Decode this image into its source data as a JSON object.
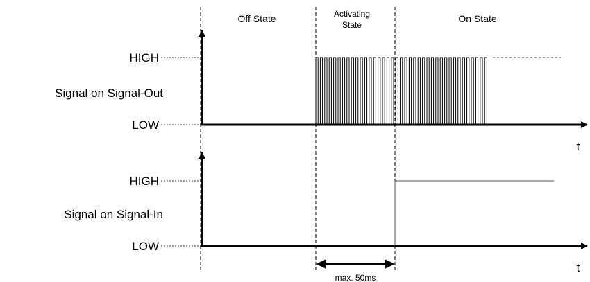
{
  "states": {
    "off": "Off State",
    "activating_line1": "Activating",
    "activating_line2": "State",
    "on": "On State"
  },
  "signal_out": {
    "label": "Signal on Signal-Out",
    "high": "HIGH",
    "low": "LOW",
    "time_axis": "t"
  },
  "signal_in": {
    "label": "Signal on Signal-In",
    "high": "HIGH",
    "low": "LOW",
    "time_axis": "t"
  },
  "timing_annotation": "max. 50ms"
}
